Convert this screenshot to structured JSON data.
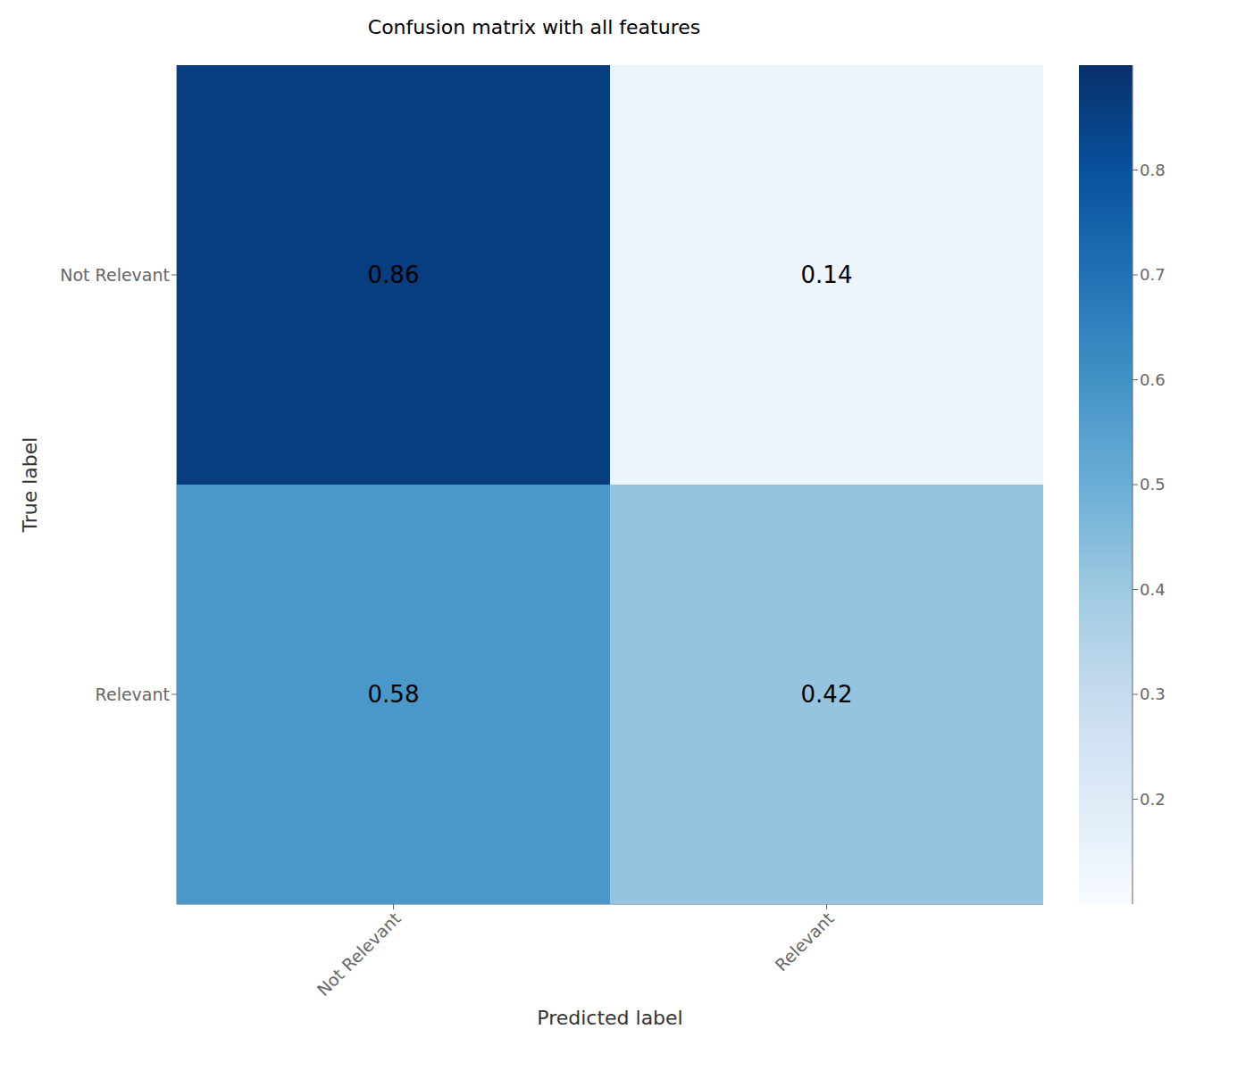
{
  "chart_data": {
    "type": "heatmap",
    "title": "Confusion matrix with all features",
    "x_label": "Predicted label",
    "y_label": "True label",
    "x_categories": [
      "Not Relevant",
      "Relevant"
    ],
    "y_categories": [
      "Not Relevant",
      "Relevant"
    ],
    "values": [
      [
        0.86,
        0.14
      ],
      [
        0.58,
        0.42
      ]
    ],
    "color": "Blues",
    "colorbar_range": [
      0.1,
      0.9
    ],
    "colorbar_ticks": [
      0.2,
      0.3,
      0.4,
      0.5,
      0.6,
      0.7,
      0.8
    ],
    "data_labels": true
  }
}
